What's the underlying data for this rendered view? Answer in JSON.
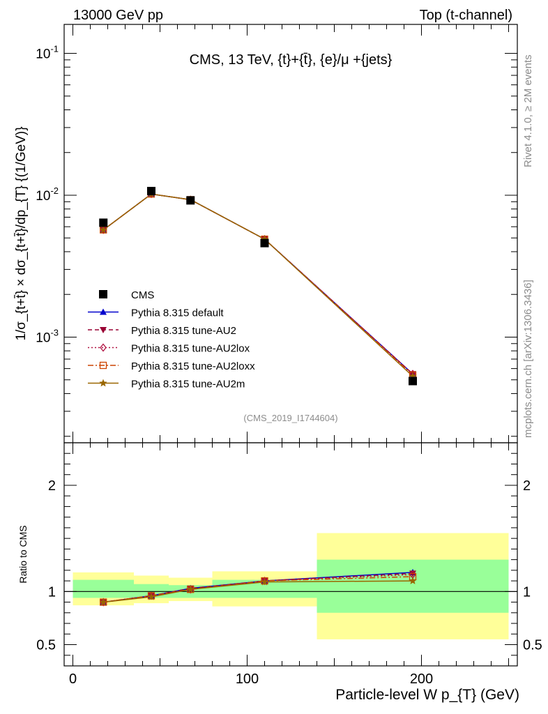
{
  "header": {
    "left": "13000 GeV pp",
    "right": "Top (t-channel)"
  },
  "side_labels": {
    "rivet": "Rivet 4.1.0, ≥ 2M events",
    "mcplots": "mcplots.cern.ch [arXiv:1306.3436]"
  },
  "chart_data": {
    "type": "line",
    "title": "CMS, 13 TeV, {t}+{t̄}, {e}/μ +{jets}",
    "analysis_id": "(CMS_2019_I1744604)",
    "xlabel": "Particle-level W p_{T} (GeV)",
    "ylabel": "1/σ_{t+t̄} × dσ_{t+t̄}/dp_{T} {(1/GeV)}",
    "xlim": [
      -5,
      255
    ],
    "ylim": [
      0.00018,
      0.16
    ],
    "yscale": "log",
    "x_ticks": [
      0,
      100,
      200
    ],
    "x_tick_labels": [
      "0",
      "100",
      "200"
    ],
    "y_tick_labels": [
      "10^{-1}",
      "10^{-2}",
      "10^{-3}"
    ],
    "y_tick_values": [
      0.1,
      0.01,
      0.001
    ],
    "bin_edges": [
      0,
      35,
      55,
      80,
      140,
      250
    ],
    "x": [
      17.5,
      45,
      67.5,
      110,
      195
    ],
    "series": [
      {
        "name": "CMS",
        "marker": "square",
        "color": "#000000",
        "values": [
          0.0064,
          0.0107,
          0.0092,
          0.0046,
          0.00049
        ]
      },
      {
        "name": "Pythia 8.315 default",
        "marker": "triangle-up",
        "color": "#0000cc",
        "dash": "solid",
        "values": [
          0.0057,
          0.0102,
          0.0093,
          0.0049,
          0.00055
        ]
      },
      {
        "name": "Pythia 8.315 tune-AU2",
        "marker": "triangle-down",
        "color": "#990033",
        "dash": "dashed",
        "values": [
          0.0057,
          0.0102,
          0.0093,
          0.0049,
          0.00055
        ]
      },
      {
        "name": "Pythia 8.315 tune-AU2lox",
        "marker": "diamond-open",
        "color": "#b01040",
        "dash": "dotted",
        "values": [
          0.0057,
          0.0102,
          0.0093,
          0.0049,
          0.00055
        ]
      },
      {
        "name": "Pythia 8.315 tune-AU2loxx",
        "marker": "square-open",
        "color": "#cc4400",
        "dash": "dashdot",
        "values": [
          0.0057,
          0.0102,
          0.0093,
          0.0049,
          0.00054
        ]
      },
      {
        "name": "Pythia 8.315 tune-AU2m",
        "marker": "star",
        "color": "#996600",
        "dash": "solid",
        "values": [
          0.0057,
          0.0102,
          0.0093,
          0.0049,
          0.00053
        ]
      }
    ],
    "ratio": {
      "ylabel": "Ratio to CMS",
      "ylim": [
        0.3,
        2.4
      ],
      "y_ticks": [
        0.5,
        1,
        2
      ],
      "y_tick_labels": [
        "0.5",
        "1",
        "2"
      ],
      "band_inner": [
        [
          0.94,
          1.11
        ],
        [
          0.94,
          1.07
        ],
        [
          0.94,
          1.06
        ],
        [
          0.94,
          1.11
        ],
        [
          0.8,
          1.3
        ]
      ],
      "band_outer": [
        [
          0.87,
          1.18
        ],
        [
          0.89,
          1.15
        ],
        [
          0.91,
          1.13
        ],
        [
          0.86,
          1.19
        ],
        [
          0.55,
          1.55
        ]
      ],
      "series": [
        {
          "name": "Pythia 8.315 default",
          "values": [
            0.9,
            0.96,
            1.03,
            1.1,
            1.18
          ]
        },
        {
          "name": "Pythia 8.315 tune-AU2",
          "values": [
            0.9,
            0.96,
            1.03,
            1.1,
            1.17
          ]
        },
        {
          "name": "Pythia 8.315 tune-AU2lox",
          "values": [
            0.9,
            0.96,
            1.02,
            1.1,
            1.16
          ]
        },
        {
          "name": "Pythia 8.315 tune-AU2loxx",
          "values": [
            0.9,
            0.96,
            1.02,
            1.1,
            1.14
          ]
        },
        {
          "name": "Pythia 8.315 tune-AU2m",
          "values": [
            0.9,
            0.95,
            1.02,
            1.09,
            1.1
          ]
        }
      ]
    },
    "colors": {
      "band_inner": "#99ff99",
      "band_outer": "#ffff99"
    }
  }
}
